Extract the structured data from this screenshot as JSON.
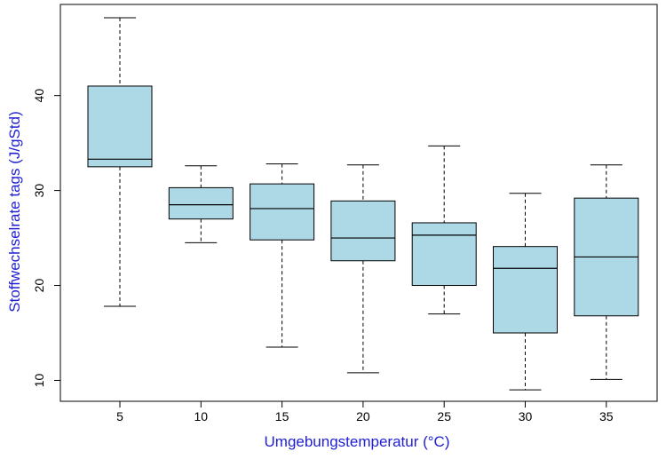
{
  "chart_data": {
    "type": "boxplot",
    "title": "",
    "xlabel": "Umgebungstemperatur (°C)",
    "ylabel": "Stoffwechselrate tags (J/gStd)",
    "categories": [
      "5",
      "10",
      "15",
      "20",
      "25",
      "30",
      "35"
    ],
    "boxes": [
      {
        "min": 17.8,
        "q1": 32.5,
        "median": 33.3,
        "q3": 41.0,
        "max": 48.2
      },
      {
        "min": 24.5,
        "q1": 27.0,
        "median": 28.5,
        "q3": 30.3,
        "max": 32.6
      },
      {
        "min": 13.5,
        "q1": 24.8,
        "median": 28.1,
        "q3": 30.7,
        "max": 32.8
      },
      {
        "min": 10.8,
        "q1": 22.6,
        "median": 25.0,
        "q3": 28.9,
        "max": 32.7
      },
      {
        "min": 17.0,
        "q1": 20.0,
        "median": 25.3,
        "q3": 26.6,
        "max": 34.7
      },
      {
        "min": 9.0,
        "q1": 15.0,
        "median": 21.8,
        "q3": 24.1,
        "max": 29.7
      },
      {
        "min": 10.1,
        "q1": 16.8,
        "median": 23.0,
        "q3": 29.2,
        "max": 32.7
      }
    ],
    "yticks": [
      "10",
      "20",
      "30",
      "40"
    ],
    "ylim": [
      7.8,
      49.6
    ],
    "grid": false,
    "legend": "none",
    "box_fill": "#add8e6",
    "box_stroke": "#000000",
    "label_color": "#1e1ed2"
  }
}
